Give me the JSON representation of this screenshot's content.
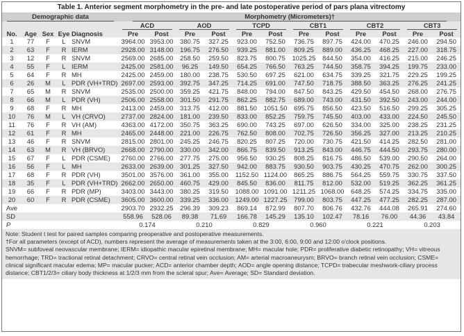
{
  "title": "Table 1. Anterior segment morphometry in the pre- and late postoperative period of pars plana vitrectomy",
  "headers": {
    "demographic": "Demographic data",
    "morphometry": "Morphometry (Micrometers)†",
    "groups": [
      "ACD",
      "AOD",
      "TCPD",
      "CBT1",
      "CBT2",
      "CBT3"
    ],
    "demo_cols": [
      "No.",
      "Age",
      "Sex",
      "Eye",
      "Diagnosis"
    ],
    "pre": "Pre",
    "post": "Post"
  },
  "rows": [
    [
      "1",
      "77",
      "F",
      "L",
      "SNVM",
      "3964.00",
      "3953.00",
      "380.75",
      "327.25",
      "923.00",
      "752.50",
      "736.75",
      "897.75",
      "424.00",
      "470.25",
      "246.00",
      "294.50"
    ],
    [
      "2",
      "63",
      "F",
      "R",
      "IERM",
      "2928.00",
      "3148.00",
      "196.75",
      "276.50",
      "939.25",
      "881.00",
      "809.25",
      "889.00",
      "436.25",
      "468.25",
      "227.00",
      "318.75"
    ],
    [
      "3",
      "12",
      "F",
      "R",
      "SNVM",
      "2569.00",
      "2685.00",
      "258.50",
      "259.50",
      "823.75",
      "800.75",
      "1025.25",
      "844.50",
      "354.00",
      "416.25",
      "215.00",
      "246.25"
    ],
    [
      "4",
      "55",
      "F",
      "L",
      "IERM",
      "2425.00",
      "2581.00",
      "96.25",
      "149.50",
      "654.25",
      "766.50",
      "763.25",
      "744.50",
      "358.75",
      "394.25",
      "199.75",
      "233.00"
    ],
    [
      "5",
      "64",
      "F",
      "R",
      "MH",
      "2425.00",
      "2459.00",
      "180.00",
      "238.75",
      "530.50",
      "697.25",
      "621.00",
      "634.75",
      "339.25",
      "321.75",
      "229.25",
      "199.25"
    ],
    [
      "6",
      "26",
      "M",
      "L",
      "PDR (VH+TRD)",
      "2697.00",
      "2593.00",
      "392.75",
      "347.25",
      "714.25",
      "691.00",
      "747.50",
      "718.75",
      "388.50",
      "363.25",
      "276.25",
      "241.25"
    ],
    [
      "7",
      "65",
      "M",
      "R",
      "SNVM",
      "2535.00",
      "2500.00",
      "359.25",
      "421.75",
      "848.00",
      "794.00",
      "847.50",
      "843.25",
      "429.50",
      "454.50",
      "268.00",
      "276.75"
    ],
    [
      "8",
      "66",
      "M",
      "L",
      "PDR (VH)",
      "2506.00",
      "2558.00",
      "301.50",
      "291.75",
      "862.25",
      "882.75",
      "689.00",
      "743.00",
      "431.50",
      "392.50",
      "243.00",
      "244.00"
    ],
    [
      "9",
      "68",
      "F",
      "R",
      "MH",
      "2413.00",
      "2459.00",
      "313.75",
      "412.00",
      "881.50",
      "1051.50",
      "695.75",
      "856.50",
      "423.50",
      "516.50",
      "299.25",
      "305.25"
    ],
    [
      "10",
      "76",
      "M",
      "L",
      "VH (CRVO)",
      "2737.00",
      "2824.00",
      "181.00",
      "239.50",
      "833.00",
      "852.25",
      "759.75",
      "745.50",
      "403.00",
      "433.00",
      "224.50",
      "245.50"
    ],
    [
      "11",
      "76",
      "F",
      "R",
      "VH (AM)",
      "4363.00",
      "4172.00",
      "350.75",
      "363.25",
      "690.00",
      "743.25",
      "697.00",
      "626.50",
      "334.00",
      "325.00",
      "238.25",
      "231.25"
    ],
    [
      "12",
      "61",
      "F",
      "R",
      "MH",
      "2465.00",
      "2448.00",
      "221.00",
      "226.75",
      "762.50",
      "808.00",
      "702.75",
      "726.50",
      "356.25",
      "327.00",
      "213.25",
      "210.25"
    ],
    [
      "13",
      "46",
      "F",
      "R",
      "SNVM",
      "2815.00",
      "2801.00",
      "245.25",
      "246.75",
      "820.25",
      "807.25",
      "720.00",
      "730.75",
      "421.50",
      "414.25",
      "282.50",
      "281.00"
    ],
    [
      "14",
      "63",
      "M",
      "R",
      "VH (BRVO)",
      "2668.00",
      "2790.00",
      "330.00",
      "342.00",
      "866.75",
      "839.50",
      "913.25",
      "843.00",
      "446.75",
      "444.50",
      "293.75",
      "280.00"
    ],
    [
      "15",
      "67",
      "F",
      "L",
      "PDR (CSME)",
      "2760.00",
      "2766.00",
      "277.75",
      "275.00",
      "956.50",
      "930.25",
      "808.25",
      "816.75",
      "486.50",
      "539.00",
      "290.50",
      "264.00"
    ],
    [
      "16",
      "56",
      "F",
      "L",
      "MH",
      "2633.00",
      "2639.00",
      "301.25",
      "327.50",
      "942.00",
      "883.75",
      "930.50",
      "903.75",
      "430.25",
      "470.75",
      "262.00",
      "300.25"
    ],
    [
      "17",
      "68",
      "F",
      "R",
      "PDR (VH)",
      "3501.00",
      "3576.00",
      "361.00",
      "355.00",
      "1152.50",
      "1124.00",
      "865.25",
      "886.75",
      "564.25",
      "559.75",
      "330.75",
      "337.50"
    ],
    [
      "18",
      "35",
      "F",
      "L",
      "PDR (VH+TRD)",
      "2662.00",
      "2650.00",
      "460.75",
      "429.00",
      "845.50",
      "836.00",
      "811.75",
      "812.00",
      "532.00",
      "519.25",
      "362.25",
      "361.25"
    ],
    [
      "19",
      "66",
      "F",
      "R",
      "PDR (MP)",
      "3403.00",
      "3443.00",
      "380.25",
      "319.50",
      "1088.00",
      "1091.00",
      "1211.25",
      "1068.00",
      "648.25",
      "574.25",
      "334.75",
      "335.00"
    ],
    [
      "20",
      "60",
      "F",
      "R",
      "PDR (CSME)",
      "3605.00",
      "3600.00",
      "339.25",
      "336.00",
      "1249.00",
      "1227.25",
      "799.00",
      "803.75",
      "447.25",
      "477.25",
      "282.25",
      "287.00"
    ]
  ],
  "ave": {
    "label": "Ave",
    "values": [
      "2903.70",
      "2932.25",
      "296.39",
      "309.23",
      "869.14",
      "872.99",
      "807.70",
      "806.76",
      "432.76",
      "444.08",
      "265.91",
      "274.60"
    ]
  },
  "sd": {
    "label": "SD",
    "values": [
      "558.96",
      "528.06",
      "89.38",
      "71.69",
      "166.78",
      "145.29",
      "135.10",
      "102.47",
      "78.16",
      "76.00",
      "44.36",
      "43.84"
    ]
  },
  "p": {
    "label": "P",
    "values": [
      "0.174",
      "0.210",
      "0.829",
      "0.960",
      "0.221",
      "0.203"
    ]
  },
  "notes": [
    "Note: Student t test for paired samples comparing preoperative and postoperative measurements.",
    "†For all parameters (except of ACD), numbers represent the average of measurements taken at the 3:00, 6:00, 9:00 and 12:00 o'clock positions.",
    "SNVM= subfoveal neovascular membrane; IERM= idiopathic macular epiretinal membrane; MH= macular hole; PDR= proliferative diabetic retinopathy; VH= vitreous hemorrhage; TRD= tractional retinal detachment; CRVO= central retinal vein occlusion; AM= arterial macroaneurysm; BRVO= branch retinal vein occlusion; CSME= clinical significant macular edema; MP= macular pucker; ACD= anterior chamber depth; AOD= angle opening distance; TCPD= trabecular meshwork-ciliary process distance; CBT1/2/3= ciliary body thickness at 1/2/3 mm from the scleral spur; Ave= Average; SD= Standard deviation."
  ]
}
